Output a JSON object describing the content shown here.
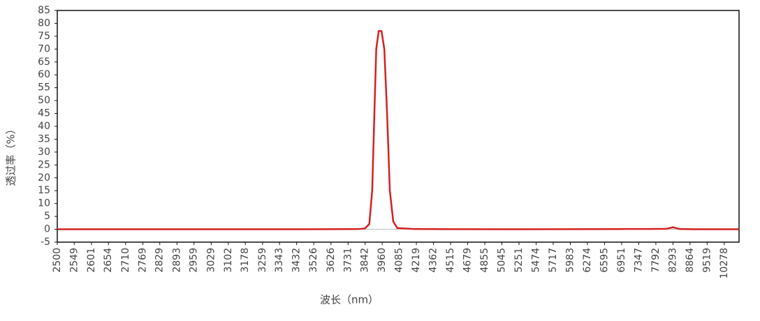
{
  "chart_data": {
    "type": "line",
    "xlabel": "波长（nm）",
    "ylabel": "透过率（%）",
    "xscale": "reciprocal",
    "xlim": [
      2500,
      11040
    ],
    "xticks": [
      2500,
      2549,
      2601,
      2654,
      2710,
      2769,
      2829,
      2893,
      2959,
      3029,
      3102,
      3178,
      3259,
      3343,
      3432,
      3526,
      3626,
      3731,
      3842,
      3960,
      4085,
      4219,
      4362,
      4515,
      4679,
      4855,
      5045,
      5251,
      5474,
      5717,
      5983,
      6274,
      6595,
      6951,
      7347,
      7792,
      8293,
      8864,
      9519,
      10278
    ],
    "ylim": [
      -5,
      85
    ],
    "yticks": [
      -5,
      0,
      5,
      10,
      15,
      20,
      25,
      30,
      35,
      40,
      45,
      50,
      55,
      60,
      65,
      70,
      75,
      80,
      85
    ],
    "zero_line": true,
    "series": [
      {
        "name": "透过率",
        "color": "#d42020",
        "x": [
          2500,
          3000,
          3500,
          3800,
          3840,
          3870,
          3890,
          3905,
          3918,
          3935,
          3955,
          3975,
          3995,
          4015,
          4040,
          4070,
          4200,
          5000,
          7000,
          7600,
          8100,
          8293,
          8500,
          9000,
          11040
        ],
        "values": [
          0,
          0,
          0,
          0.1,
          0.3,
          2,
          15,
          45,
          70,
          77,
          77,
          70,
          45,
          15,
          3,
          0.5,
          0.1,
          0,
          0.1,
          0.1,
          0.2,
          0.8,
          0.1,
          0,
          0
        ]
      }
    ]
  }
}
